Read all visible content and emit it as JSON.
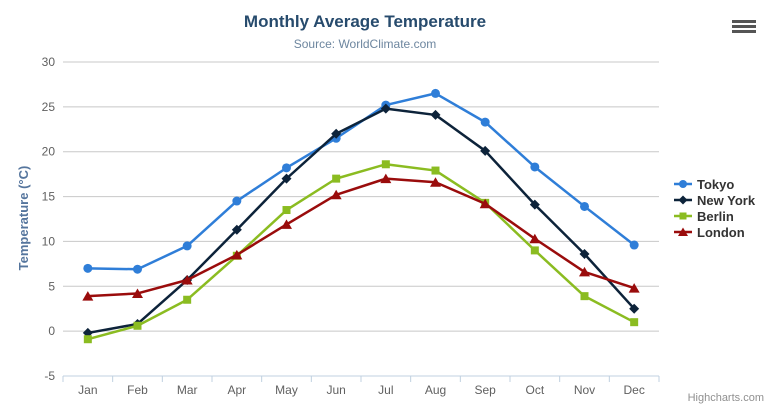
{
  "header": {
    "title": "Monthly Average Temperature",
    "subtitle": "Source: WorldClimate.com"
  },
  "footer": {
    "credits": "Highcharts.com"
  },
  "icons": {
    "export_menu": "hamburger-menu-icon"
  },
  "colors": {
    "title": "#274b6d",
    "subtitle": "#6d869f",
    "axis_title": "#55759d",
    "axis_labels": "#606060",
    "gridline": "#c8c8c8",
    "axis_line": "#c0d0e0",
    "legend_text": "#333333",
    "credits": "#909090"
  },
  "chart_data": {
    "type": "line",
    "title": "Monthly Average Temperature",
    "subtitle": "Source: WorldClimate.com",
    "xlabel": "",
    "ylabel": "Temperature (°C)",
    "categories": [
      "Jan",
      "Feb",
      "Mar",
      "Apr",
      "May",
      "Jun",
      "Jul",
      "Aug",
      "Sep",
      "Oct",
      "Nov",
      "Dec"
    ],
    "ylim": [
      -5,
      30
    ],
    "yticks": [
      -5,
      0,
      5,
      10,
      15,
      20,
      25,
      30
    ],
    "grid": true,
    "legend_position": "right",
    "series": [
      {
        "name": "Tokyo",
        "color": "#2f7ed8",
        "marker": "circle",
        "values": [
          7.0,
          6.9,
          9.5,
          14.5,
          18.2,
          21.5,
          25.2,
          26.5,
          23.3,
          18.3,
          13.9,
          9.6
        ]
      },
      {
        "name": "New York",
        "color": "#0d233a",
        "marker": "diamond",
        "values": [
          -0.2,
          0.8,
          5.7,
          11.3,
          17.0,
          22.0,
          24.8,
          24.1,
          20.1,
          14.1,
          8.6,
          2.5
        ]
      },
      {
        "name": "Berlin",
        "color": "#8bbc21",
        "marker": "square",
        "values": [
          -0.9,
          0.6,
          3.5,
          8.4,
          13.5,
          17.0,
          18.6,
          17.9,
          14.3,
          9.0,
          3.9,
          1.0
        ]
      },
      {
        "name": "London",
        "color": "#9a0c0c",
        "marker": "triangle",
        "values": [
          3.9,
          4.2,
          5.7,
          8.5,
          11.9,
          15.2,
          17.0,
          16.6,
          14.2,
          10.3,
          6.6,
          4.8
        ]
      }
    ]
  }
}
